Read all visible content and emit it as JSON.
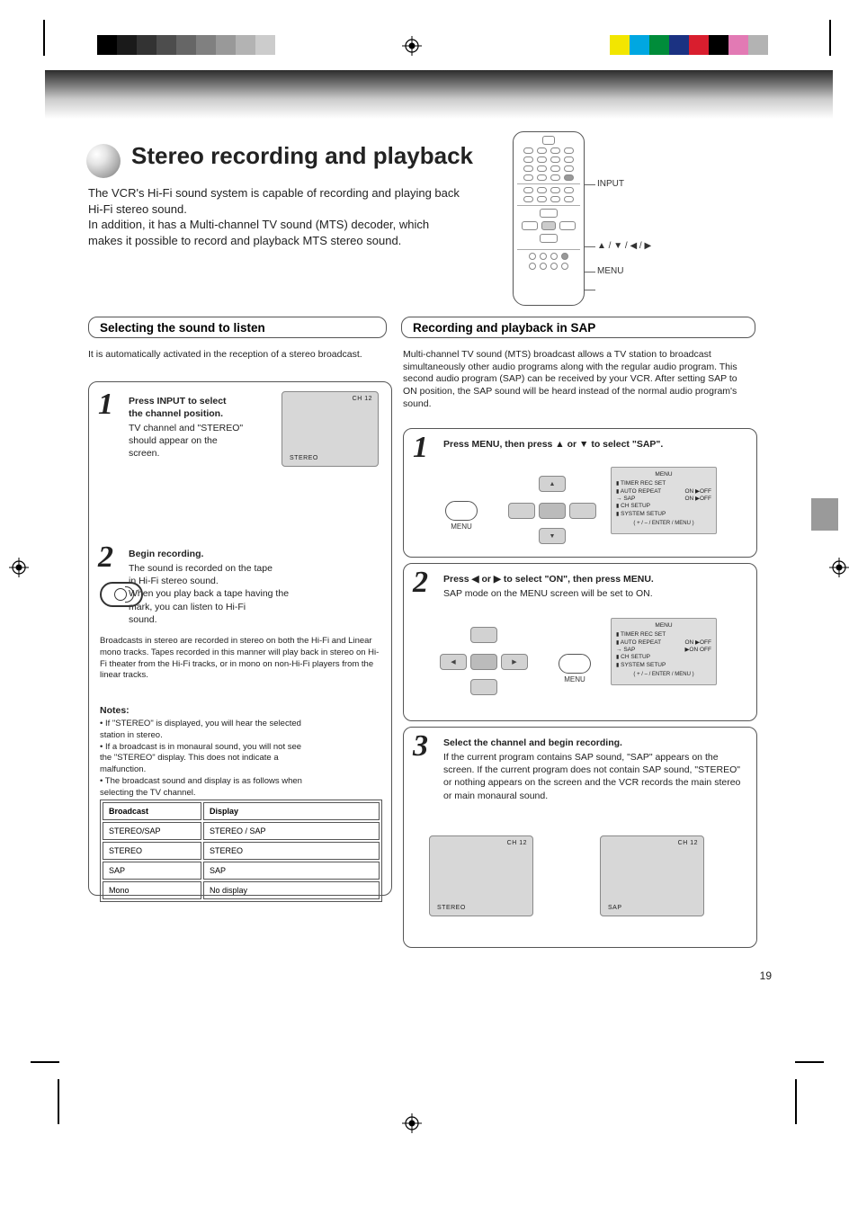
{
  "colorbar_left": [
    "#000000",
    "#1a1a1a",
    "#333333",
    "#4d4d4d",
    "#666666",
    "#808080",
    "#999999",
    "#b3b3b3",
    "#cccccc",
    "#ffffff"
  ],
  "colorbar_right": [
    "#f2e600",
    "#00a7e1",
    "#008c3a",
    "#1b3282",
    "#d91e2e",
    "#000000",
    "#e27ab4",
    "#b3b3b3"
  ],
  "title": "Stereo recording and playback",
  "subtitle_lines": [
    "The VCR's Hi-Fi sound system is capable of recording and playing back",
    "Hi-Fi stereo sound.",
    "In addition, it has a Multi-channel TV sound (MTS) decoder, which",
    "makes it possible to record and playback MTS stereo sound."
  ],
  "remote_labels": {
    "input": "INPUT",
    "arrows": "▲ / ▼ / ◀ / ▶",
    "menu": "MENU"
  },
  "section_left_title": "Selecting the sound to listen",
  "section_right_title": "Recording and playback in SAP",
  "left_lead": "It is automatically activated in the reception of a stereo broadcast.",
  "left_box": {
    "step1_num": "1",
    "step1_lines": [
      "Press INPUT to select",
      "the channel position.",
      "TV channel and \"STEREO\"",
      "should appear on the",
      "screen."
    ],
    "step1_screen": {
      "ch": "CH  12",
      "tag": "STEREO"
    },
    "step2_num": "2",
    "step2_lines": [
      "Begin recording.",
      "The sound is recorded on the tape",
      "in Hi-Fi stereo sound.",
      "When you play back a tape having the",
      "      mark, you can listen to Hi-Fi",
      "sound."
    ],
    "hifi_note_lines": [
      "Broadcasts in stereo are recorded in stereo on",
      "both the Hi-Fi and Linear mono tracks. Tapes",
      "recorded in this manner will play back in stereo",
      "on Hi-Fi theater from the Hi-Fi tracks, or in mono",
      "on non-Hi-Fi players from the linear tracks."
    ],
    "notes_title": "Notes:",
    "notes_lines": [
      "• If \"STEREO\" is displayed, you will hear the selected",
      "  station in stereo.",
      "• If a broadcast is in monaural sound, you will not see",
      "  the \"STEREO\" display. This does not indicate a",
      "  malfunction.",
      "• The broadcast sound and display is as follows when",
      "  selecting the TV channel."
    ],
    "table": {
      "h1": "Broadcast",
      "h2": "Display",
      "rows": [
        [
          "STEREO/SAP",
          "STEREO / SAP"
        ],
        [
          "STEREO",
          "STEREO"
        ],
        [
          "SAP",
          "SAP"
        ],
        [
          "Mono",
          "No display"
        ]
      ]
    }
  },
  "right_lead_lines": [
    "Multi-channel TV sound (MTS) broadcast allows a TV station to",
    "broadcast simultaneously other audio programs along with the regular",
    "audio program. This second audio program (SAP) can be received by",
    "your VCR. After setting SAP to ON position, the SAP sound will be",
    "heard instead of the normal audio program's sound."
  ],
  "osd": {
    "title": "MENU",
    "rows": [
      {
        "l": "TIMER REC SET",
        "r": ""
      },
      {
        "l": "AUTO REPEAT",
        "r": "ON ▶OFF"
      },
      {
        "l": "SAP",
        "r": "ON ▶OFF"
      },
      {
        "l": "CH SETUP",
        "r": ""
      },
      {
        "l": "SYSTEM SETUP",
        "r": ""
      }
    ],
    "rows_b": [
      {
        "l": "TIMER REC SET",
        "r": ""
      },
      {
        "l": "AUTO REPEAT",
        "r": "ON ▶OFF"
      },
      {
        "l": "SAP",
        "r": "▶ON   OFF"
      },
      {
        "l": "CH SETUP",
        "r": ""
      },
      {
        "l": "SYSTEM SETUP",
        "r": ""
      }
    ],
    "footer": "( + / – / ENTER / MENU )"
  },
  "right_box_a": {
    "num": "1",
    "line1": "Press MENU, then press ▲ or ▼ to select \"SAP\".",
    "menu_label": "MENU"
  },
  "right_box_b": {
    "num": "2",
    "line1": "Press ◀ or ▶ to select \"ON\", then press MENU.",
    "line2": "SAP mode on the MENU screen will be set to ON.",
    "menu_label": "MENU"
  },
  "right_box_c": {
    "num": "3",
    "line1": "Select the channel and begin recording.",
    "line2": "If the current program contains SAP sound, \"SAP\" appears on",
    "line3": "the screen. If the current program does not contain SAP",
    "line4": "sound, \"STEREO\" or nothing appears on the screen and the",
    "line5": "VCR records the main stereo or main monaural sound.",
    "screen_left": {
      "ch": "CH  12",
      "tag": "STEREO"
    },
    "screen_right": {
      "ch": "CH  12",
      "tag": "SAP"
    }
  },
  "page_num": "19"
}
